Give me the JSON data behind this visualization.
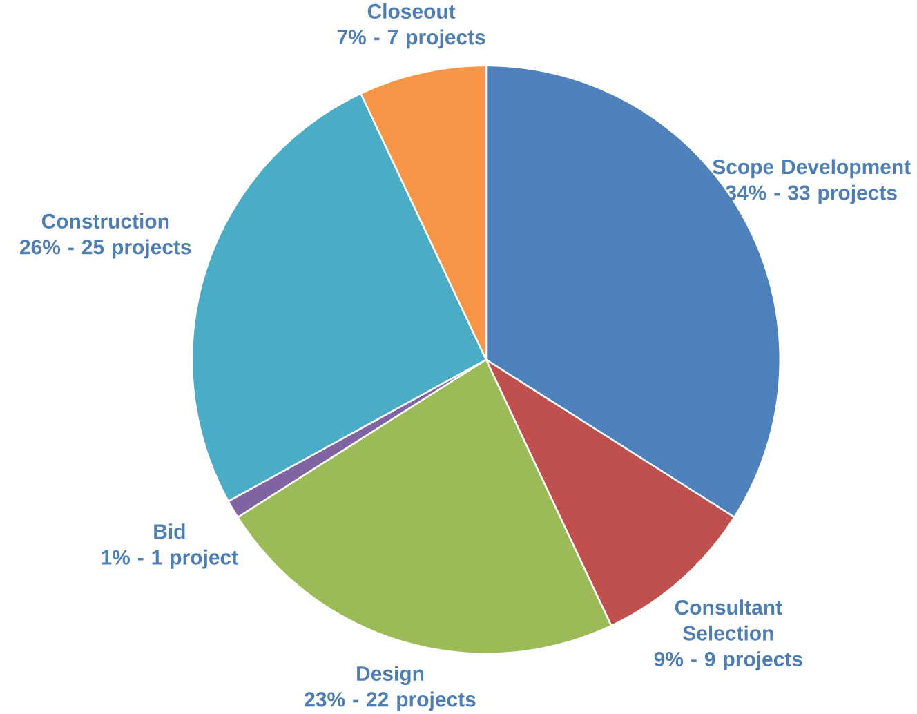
{
  "chart_data": {
    "type": "pie",
    "categories": [
      "Scope Development",
      "Consultant Selection",
      "Design",
      "Bid",
      "Construction",
      "Closeout"
    ],
    "values": [
      34,
      9,
      23,
      1,
      26,
      7
    ],
    "value_labels": [
      "34% - 33 projects",
      "9% - 9 projects",
      "23% - 22 projects",
      "1% - 1 project",
      "26% - 25 projects",
      "7% - 7 projects"
    ],
    "colors": [
      "#4f81bd",
      "#c0504d",
      "#9bbb59",
      "#8064a2",
      "#4bacc6",
      "#f79646"
    ]
  }
}
